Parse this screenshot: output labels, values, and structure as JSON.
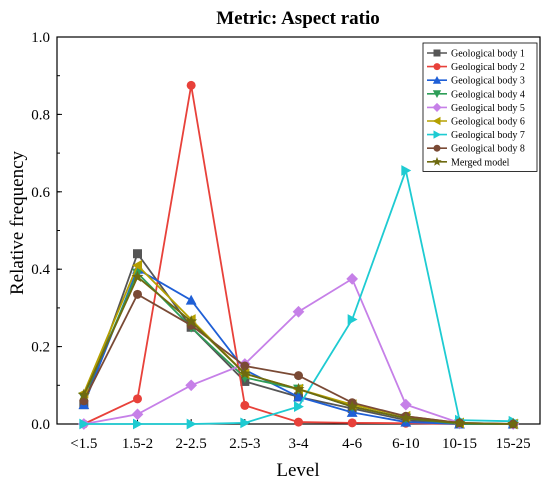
{
  "chart_data": {
    "type": "line",
    "title": "Metric: Aspect  ratio",
    "xlabel": "Level",
    "ylabel": "Relative frequency",
    "categories": [
      "<1.5",
      "1.5-2",
      "2-2.5",
      "2.5-3",
      "3-4",
      "4-6",
      "6-10",
      "10-15",
      "15-25"
    ],
    "ylim": [
      0,
      1.0
    ],
    "yticks": [
      "0.0",
      "0.2",
      "0.4",
      "0.6",
      "0.8",
      "1.0"
    ],
    "legend_position": "top-right",
    "grid": false,
    "series": [
      {
        "name": "Geological body 1",
        "color": "#555555",
        "marker": "square",
        "values": [
          0.05,
          0.44,
          0.25,
          0.11,
          0.07,
          0.04,
          0.01,
          0.0,
          0.0
        ]
      },
      {
        "name": "Geological body 2",
        "color": "#e8413a",
        "marker": "circle",
        "values": [
          0.0,
          0.065,
          0.875,
          0.048,
          0.005,
          0.003,
          0.002,
          0.0,
          0.0
        ]
      },
      {
        "name": "Geological body 3",
        "color": "#1f5fd6",
        "marker": "triangle-up",
        "values": [
          0.05,
          0.4,
          0.32,
          0.14,
          0.07,
          0.03,
          0.005,
          0.0,
          0.0
        ]
      },
      {
        "name": "Geological body 4",
        "color": "#2e9e58",
        "marker": "triangle-down",
        "values": [
          0.07,
          0.39,
          0.25,
          0.12,
          0.09,
          0.045,
          0.015,
          0.0,
          0.0
        ]
      },
      {
        "name": "Geological body 5",
        "color": "#c680e8",
        "marker": "diamond",
        "values": [
          0.0,
          0.025,
          0.1,
          0.155,
          0.29,
          0.375,
          0.05,
          0.003,
          0.0
        ]
      },
      {
        "name": "Geological body 6",
        "color": "#b5a000",
        "marker": "triangle-left",
        "values": [
          0.08,
          0.41,
          0.27,
          0.13,
          0.09,
          0.05,
          0.02,
          0.003,
          0.0
        ]
      },
      {
        "name": "Geological body 7",
        "color": "#1ecbd2",
        "marker": "triangle-right",
        "values": [
          0.0,
          0.0,
          0.0,
          0.003,
          0.045,
          0.27,
          0.655,
          0.01,
          0.007
        ]
      },
      {
        "name": "Geological body 8",
        "color": "#7a4a35",
        "marker": "circle",
        "values": [
          0.06,
          0.335,
          0.255,
          0.15,
          0.125,
          0.055,
          0.02,
          0.003,
          0.0
        ]
      },
      {
        "name": "Merged model",
        "color": "#6e6a10",
        "marker": "star",
        "values": [
          0.075,
          0.38,
          0.265,
          0.13,
          0.09,
          0.045,
          0.015,
          0.002,
          0.0
        ]
      }
    ]
  }
}
